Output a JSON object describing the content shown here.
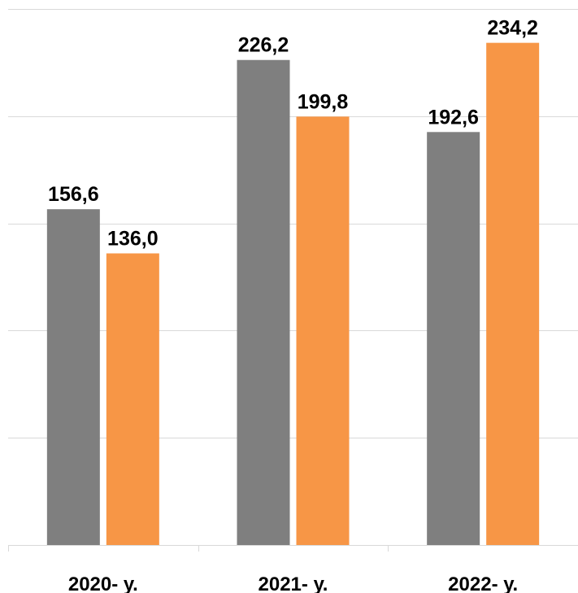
{
  "chart_data": {
    "type": "bar",
    "categories": [
      "2020- у.",
      "2021- у.",
      "2022- у."
    ],
    "series": [
      {
        "color": "#7f7f7f",
        "values": [
          156.6,
          226.2,
          192.6
        ],
        "labels": [
          "156,6",
          "226,2",
          "192,6"
        ]
      },
      {
        "color": "#f79646",
        "values": [
          136.0,
          199.8,
          234.2
        ],
        "labels": [
          "136,0",
          "199,8",
          "234,2"
        ]
      }
    ],
    "ylim": [
      0,
      250
    ],
    "grid": true,
    "legend": "none"
  }
}
